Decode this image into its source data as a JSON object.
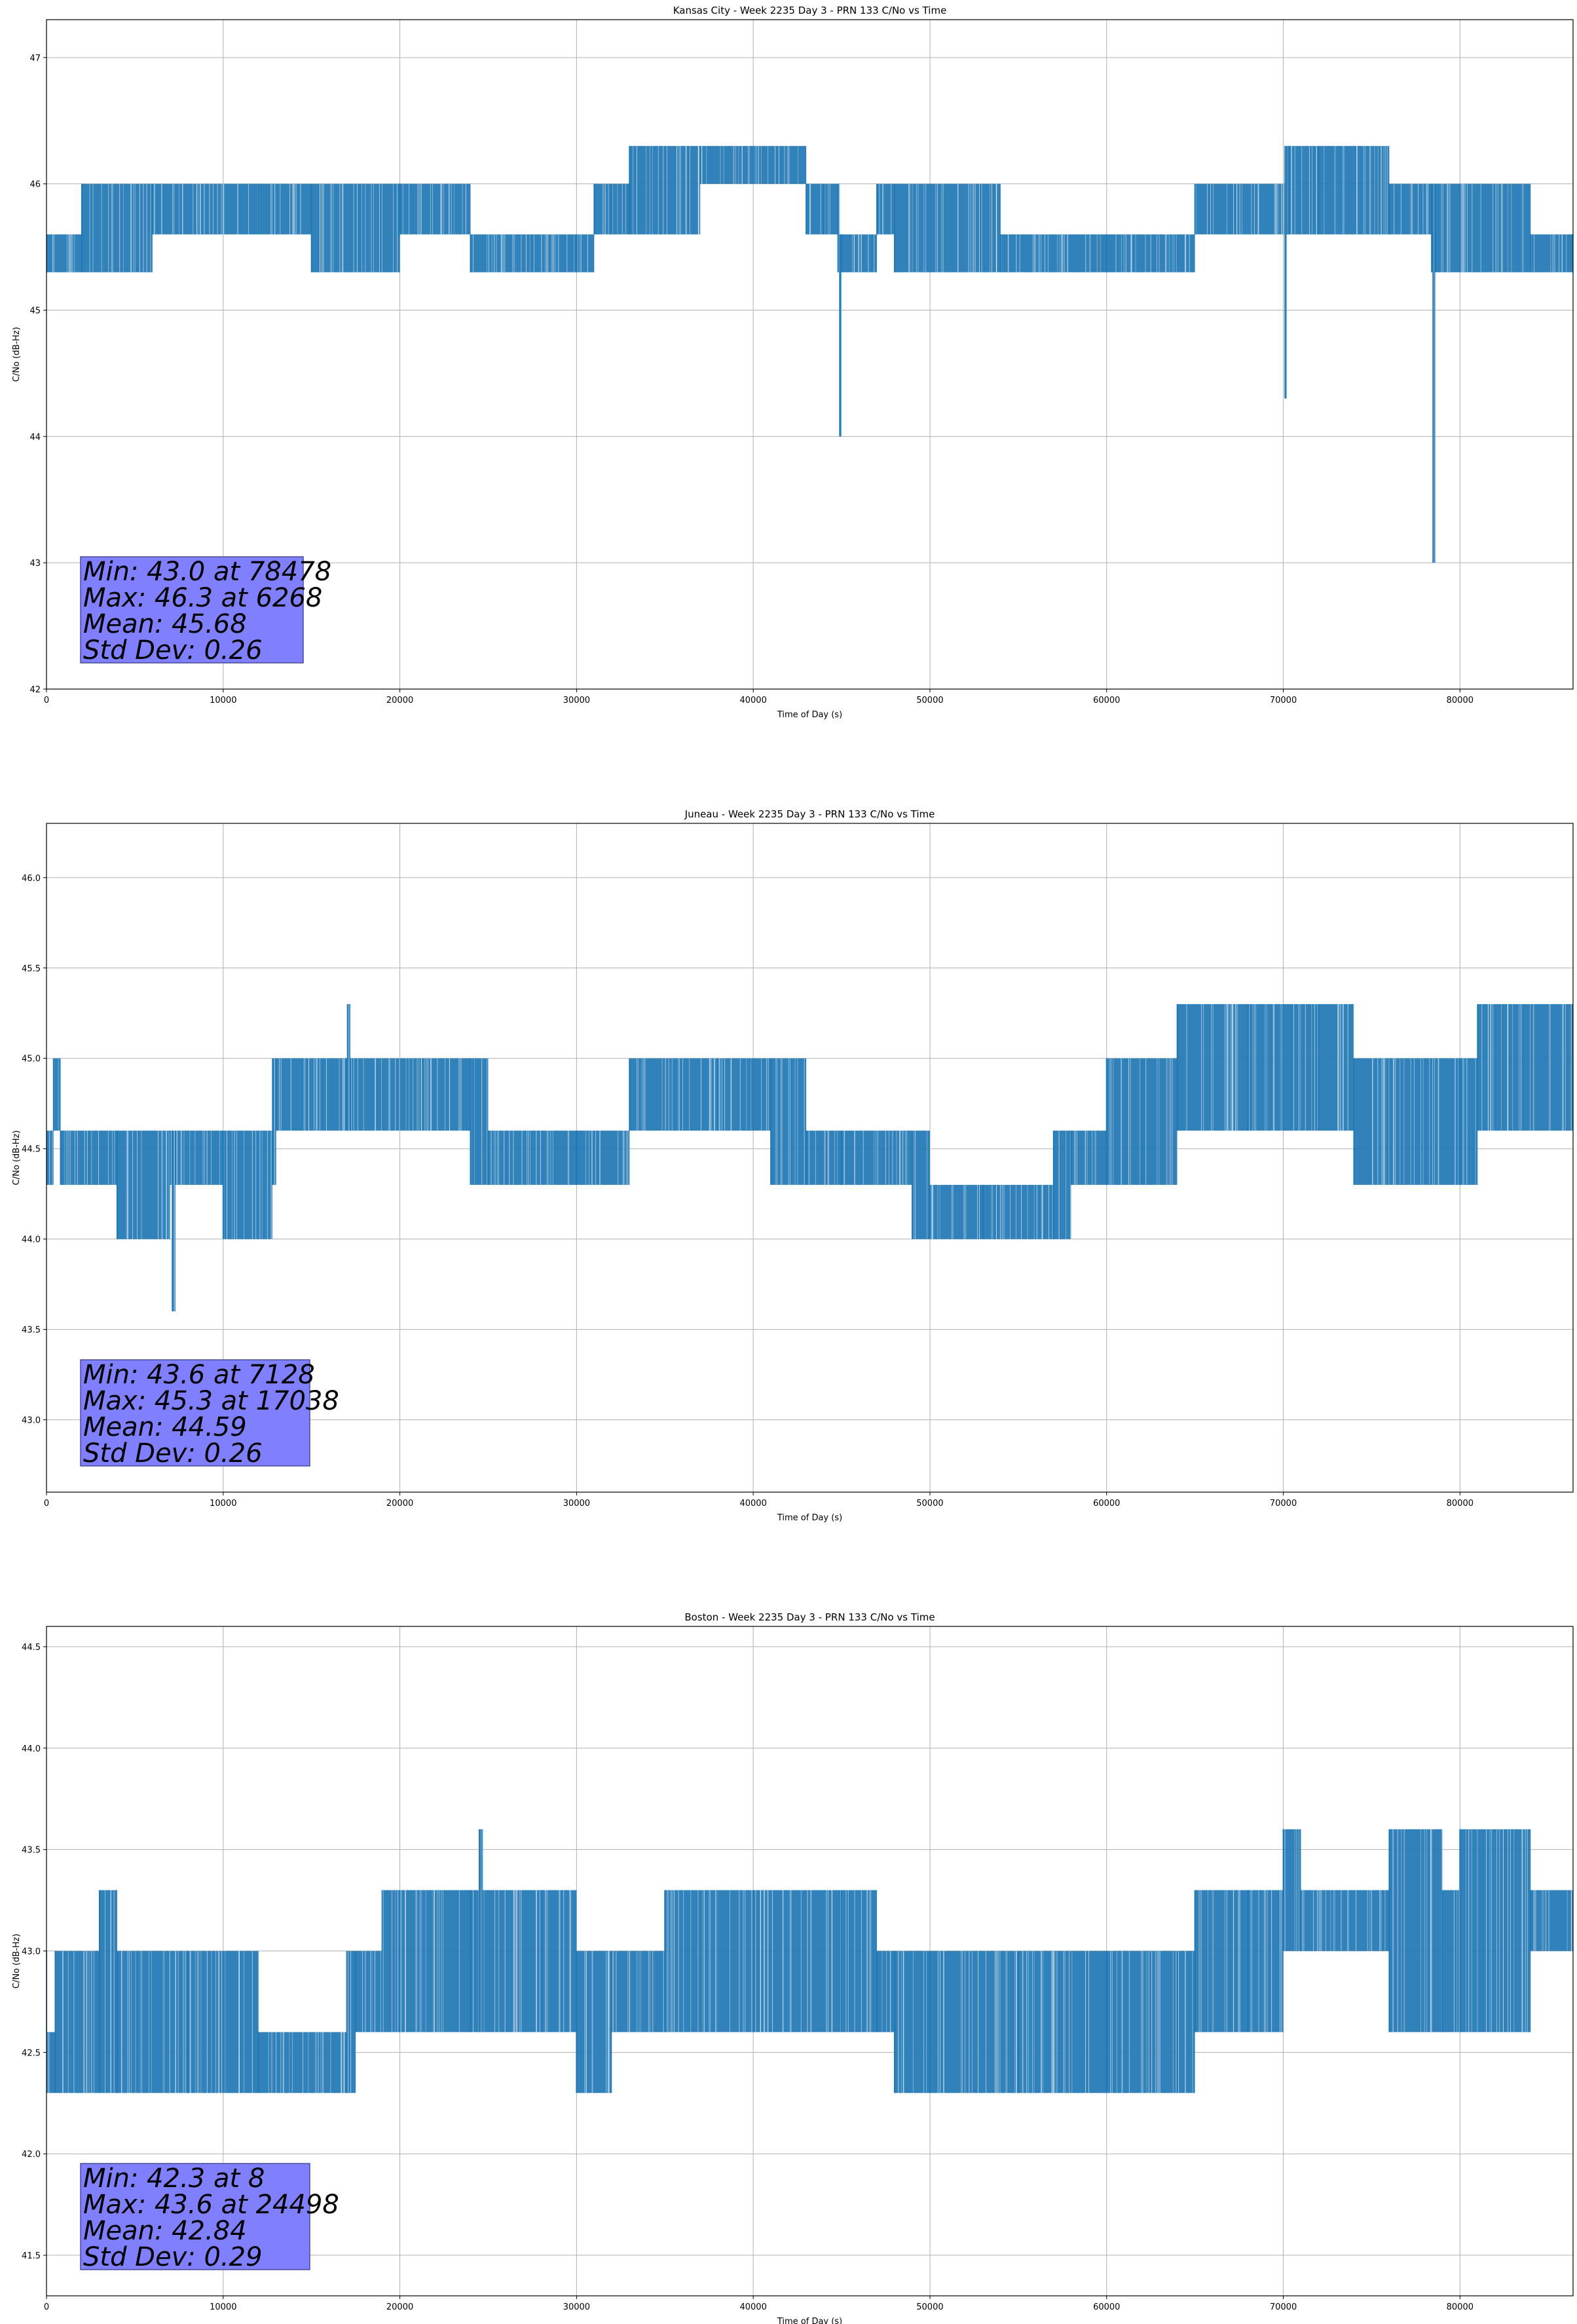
{
  "colors": {
    "series": "#1f77b4",
    "grid": "#b0b0b0",
    "stats_box_fill": "#8080ff",
    "stats_box_stroke": "#4a4a9a",
    "axes": "#000000"
  },
  "chart_data": [
    {
      "type": "line",
      "title": "Kansas City - Week 2235 Day 3 - PRN 133 C/No vs Time",
      "xlabel": "Time of Day (s)",
      "ylabel": "C/No (dB-Hz)",
      "xlim": [
        0,
        86400
      ],
      "ylim": [
        42,
        47.3
      ],
      "grid": true,
      "xticks": [
        0,
        10000,
        20000,
        30000,
        40000,
        50000,
        60000,
        70000,
        80000
      ],
      "yticks": [
        42,
        43,
        44,
        45,
        46,
        47
      ],
      "ytick_labels": [
        "42",
        "43",
        "44",
        "45",
        "46",
        "47"
      ],
      "series": [
        {
          "x": [
            0,
            2000,
            6000,
            12000,
            15000,
            20000,
            24000,
            30000,
            31000,
            32000,
            33000,
            37000,
            40000,
            43000,
            44000,
            44800,
            44900,
            45000,
            47000,
            48000,
            54000,
            60000,
            65000,
            70100,
            70200,
            70300,
            72000,
            76000,
            78400,
            78478,
            78600,
            80000,
            84000,
            86400
          ],
          "lo": [
            45.3,
            45.3,
            45.6,
            45.6,
            45.3,
            45.6,
            45.3,
            45.3,
            45.6,
            45.6,
            45.6,
            46.0,
            46.0,
            45.6,
            45.6,
            45.3,
            44.0,
            45.3,
            45.6,
            45.3,
            45.3,
            45.3,
            45.6,
            44.3,
            45.6,
            45.6,
            45.6,
            45.6,
            45.3,
            43.0,
            45.3,
            45.3,
            45.3,
            45.3
          ],
          "hi": [
            45.6,
            46.0,
            46.0,
            46.0,
            46.0,
            46.0,
            45.6,
            45.6,
            46.0,
            46.0,
            46.3,
            46.3,
            46.3,
            46.0,
            46.0,
            46.0,
            45.6,
            45.6,
            46.0,
            46.0,
            45.6,
            45.6,
            46.0,
            46.3,
            46.3,
            46.3,
            46.3,
            46.0,
            46.0,
            46.0,
            46.0,
            46.0,
            45.6,
            45.6
          ]
        }
      ],
      "stats": [
        "Min: 43.0 at 78478",
        "Max: 46.3 at 6268",
        "Mean: 45.68",
        "Std Dev: 0.26"
      ]
    },
    {
      "type": "line",
      "title": "Juneau - Week 2235 Day 3 - PRN 133 C/No vs Time",
      "xlabel": "Time of Day (s)",
      "ylabel": "C/No (dB-Hz)",
      "xlim": [
        0,
        86400
      ],
      "ylim": [
        42.6,
        46.3
      ],
      "grid": true,
      "xticks": [
        0,
        10000,
        20000,
        30000,
        40000,
        50000,
        60000,
        70000,
        80000
      ],
      "yticks": [
        43.0,
        43.5,
        44.0,
        44.5,
        45.0,
        45.5,
        46.0
      ],
      "ytick_labels": [
        "43.0",
        "43.5",
        "44.0",
        "44.5",
        "45.0",
        "45.5",
        "46.0"
      ],
      "series": [
        {
          "x": [
            0,
            400,
            800,
            4000,
            7000,
            7128,
            7300,
            10000,
            12800,
            13000,
            17000,
            17038,
            17200,
            24000,
            25000,
            30000,
            33000,
            38000,
            41000,
            43000,
            45000,
            49000,
            50000,
            53000,
            57000,
            58000,
            60000,
            62000,
            64000,
            68000,
            72000,
            74000,
            80000,
            81000,
            86400
          ],
          "lo": [
            44.3,
            44.6,
            44.3,
            44.0,
            44.3,
            43.6,
            44.3,
            44.0,
            44.3,
            44.6,
            44.6,
            44.6,
            44.6,
            44.3,
            44.3,
            44.3,
            44.6,
            44.6,
            44.3,
            44.3,
            44.3,
            44.0,
            44.0,
            44.0,
            44.0,
            44.3,
            44.3,
            44.3,
            44.6,
            44.6,
            44.6,
            44.3,
            44.3,
            44.6,
            44.6
          ],
          "hi": [
            44.6,
            45.0,
            44.6,
            44.6,
            44.6,
            44.6,
            44.6,
            44.6,
            45.0,
            45.0,
            45.0,
            45.3,
            45.0,
            45.0,
            44.6,
            44.6,
            45.0,
            45.0,
            45.0,
            44.6,
            44.6,
            44.6,
            44.3,
            44.3,
            44.6,
            44.6,
            45.0,
            45.0,
            45.3,
            45.3,
            45.3,
            45.0,
            45.0,
            45.3,
            45.0
          ]
        }
      ],
      "stats": [
        "Min: 43.6 at 7128",
        "Max: 45.3 at 17038",
        "Mean: 44.59",
        "Std Dev: 0.26"
      ]
    },
    {
      "type": "line",
      "title": "Boston - Week 2235 Day 3 - PRN 133 C/No vs Time",
      "xlabel": "Time of Day (s)",
      "ylabel": "C/No (dB-Hz)",
      "xlim": [
        0,
        86400
      ],
      "ylim": [
        41.3,
        44.6
      ],
      "grid": true,
      "xticks": [
        0,
        10000,
        20000,
        30000,
        40000,
        50000,
        60000,
        70000,
        80000
      ],
      "yticks": [
        41.5,
        42.0,
        42.5,
        43.0,
        43.5,
        44.0,
        44.5
      ],
      "ytick_labels": [
        "41.5",
        "42.0",
        "42.5",
        "43.0",
        "43.5",
        "44.0",
        "44.5"
      ],
      "series": [
        {
          "x": [
            0,
            8,
            500,
            3000,
            4000,
            8000,
            12000,
            17000,
            17500,
            19000,
            20000,
            24000,
            24498,
            24700,
            28000,
            30000,
            32000,
            35000,
            40000,
            45000,
            47000,
            48000,
            50000,
            55000,
            60000,
            64000,
            65000,
            68000,
            70000,
            71000,
            76000,
            79000,
            80000,
            84000,
            86400
          ],
          "lo": [
            42.3,
            42.3,
            42.3,
            42.3,
            42.3,
            42.3,
            42.3,
            42.3,
            42.6,
            42.6,
            42.6,
            42.6,
            42.6,
            42.6,
            42.6,
            42.3,
            42.6,
            42.6,
            42.6,
            42.6,
            42.6,
            42.3,
            42.3,
            42.3,
            42.3,
            42.3,
            42.6,
            42.6,
            43.0,
            43.0,
            42.6,
            42.6,
            42.6,
            43.0,
            43.0
          ],
          "hi": [
            43.0,
            42.6,
            43.0,
            43.3,
            43.0,
            43.0,
            42.6,
            43.0,
            43.0,
            43.3,
            43.3,
            43.3,
            43.6,
            43.3,
            43.3,
            43.0,
            43.0,
            43.3,
            43.3,
            43.3,
            43.0,
            43.0,
            43.0,
            43.0,
            43.0,
            43.0,
            43.3,
            43.3,
            43.6,
            43.3,
            43.6,
            43.3,
            43.6,
            43.3,
            43.3
          ]
        }
      ],
      "stats": [
        "Min: 42.3 at 8",
        "Max: 43.6 at 24498",
        "Mean: 42.84",
        "Std Dev: 0.29"
      ]
    }
  ]
}
